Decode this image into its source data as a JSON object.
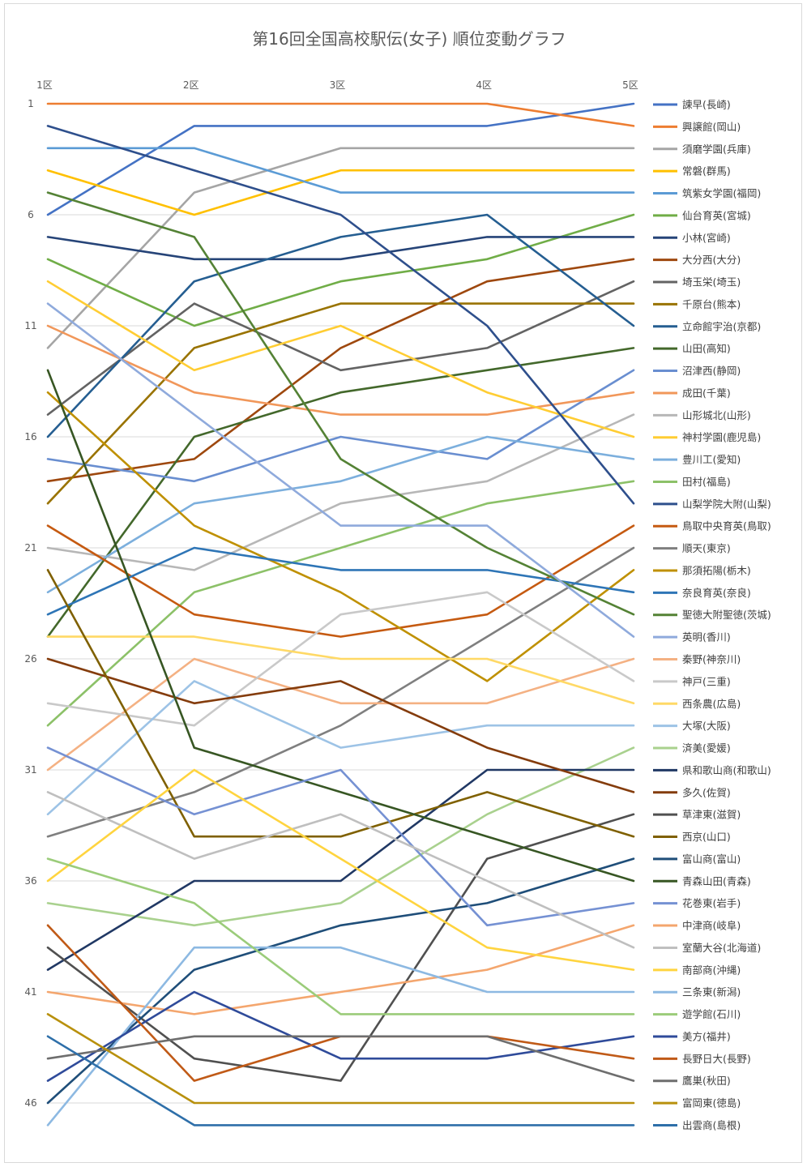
{
  "chart_data": {
    "type": "line",
    "title": "第16回全国高校駅伝(女子) 順位変動グラフ",
    "categories": [
      "1区",
      "2区",
      "3区",
      "4区",
      "5区"
    ],
    "y_ticks": [
      "1",
      "6",
      "11",
      "16",
      "21",
      "26",
      "31",
      "36",
      "41",
      "46"
    ],
    "ylim": [
      1,
      47
    ],
    "y_reversed": true,
    "grid": true,
    "legend_position": "right",
    "series": [
      {
        "name": "諫早(長崎)",
        "color": "#4472C4",
        "values": [
          6,
          2,
          2,
          2,
          1
        ]
      },
      {
        "name": "興譲館(岡山)",
        "color": "#ED7D31",
        "values": [
          1,
          1,
          1,
          1,
          2
        ]
      },
      {
        "name": "須磨学園(兵庫)",
        "color": "#A5A5A5",
        "values": [
          12,
          5,
          3,
          3,
          3
        ]
      },
      {
        "name": "常磐(群馬)",
        "color": "#FFC000",
        "values": [
          4,
          6,
          4,
          4,
          4
        ]
      },
      {
        "name": "筑紫女学園(福岡)",
        "color": "#5B9BD5",
        "values": [
          3,
          3,
          5,
          5,
          5
        ]
      },
      {
        "name": "仙台育英(宮城)",
        "color": "#70AD47",
        "values": [
          8,
          11,
          9,
          8,
          6
        ]
      },
      {
        "name": "小林(宮崎)",
        "color": "#264478",
        "values": [
          7,
          8,
          8,
          7,
          7
        ]
      },
      {
        "name": "大分西(大分)",
        "color": "#9E480E",
        "values": [
          18,
          17,
          12,
          9,
          8
        ]
      },
      {
        "name": "埼玉栄(埼玉)",
        "color": "#636363",
        "values": [
          15,
          10,
          13,
          12,
          9
        ]
      },
      {
        "name": "千原台(熊本)",
        "color": "#997300",
        "values": [
          19,
          12,
          10,
          10,
          10
        ]
      },
      {
        "name": "立命館宇治(京都)",
        "color": "#255E91",
        "values": [
          16,
          9,
          7,
          6,
          11
        ]
      },
      {
        "name": "山田(高知)",
        "color": "#43682B",
        "values": [
          25,
          16,
          14,
          13,
          12
        ]
      },
      {
        "name": "沼津西(静岡)",
        "color": "#698ED0",
        "values": [
          17,
          18,
          16,
          17,
          13
        ]
      },
      {
        "name": "成田(千葉)",
        "color": "#F1975A",
        "values": [
          11,
          14,
          15,
          15,
          14
        ]
      },
      {
        "name": "山形城北(山形)",
        "color": "#B7B7B7",
        "values": [
          21,
          22,
          19,
          18,
          15
        ]
      },
      {
        "name": "神村学園(鹿児島)",
        "color": "#FFCD33",
        "values": [
          9,
          13,
          11,
          14,
          16
        ]
      },
      {
        "name": "豊川工(愛知)",
        "color": "#7CAFDD",
        "values": [
          23,
          19,
          18,
          16,
          17
        ]
      },
      {
        "name": "田村(福島)",
        "color": "#8CC168",
        "values": [
          29,
          23,
          21,
          19,
          18
        ]
      },
      {
        "name": "山梨学院大附(山梨)",
        "color": "#2E4F8C",
        "values": [
          2,
          4,
          6,
          11,
          19
        ]
      },
      {
        "name": "鳥取中央育英(鳥取)",
        "color": "#C55A11",
        "values": [
          20,
          24,
          25,
          24,
          20
        ]
      },
      {
        "name": "順天(東京)",
        "color": "#7F7F7F",
        "values": [
          34,
          32,
          29,
          25,
          21
        ]
      },
      {
        "name": "那須拓陽(栃木)",
        "color": "#BF9000",
        "values": [
          14,
          20,
          23,
          27,
          22
        ]
      },
      {
        "name": "奈良育英(奈良)",
        "color": "#2E75B6",
        "values": [
          24,
          21,
          22,
          22,
          23
        ]
      },
      {
        "name": "聖徳大附聖徳(茨城)",
        "color": "#548235",
        "values": [
          5,
          7,
          17,
          21,
          24
        ]
      },
      {
        "name": "英明(香川)",
        "color": "#8FAADC",
        "values": [
          10,
          15,
          20,
          20,
          25
        ]
      },
      {
        "name": "秦野(神奈川)",
        "color": "#F4B183",
        "values": [
          31,
          26,
          28,
          28,
          26
        ]
      },
      {
        "name": "神戸(三重)",
        "color": "#C9C9C9",
        "values": [
          28,
          29,
          24,
          23,
          27
        ]
      },
      {
        "name": "西条農(広島)",
        "color": "#FFD966",
        "values": [
          25,
          25,
          26,
          26,
          28
        ]
      },
      {
        "name": "大塚(大阪)",
        "color": "#9DC3E6",
        "values": [
          33,
          27,
          30,
          29,
          29
        ]
      },
      {
        "name": "済美(愛媛)",
        "color": "#A9D18E",
        "values": [
          37,
          38,
          37,
          33,
          30
        ]
      },
      {
        "name": "県和歌山商(和歌山)",
        "color": "#203864",
        "values": [
          40,
          36,
          36,
          31,
          31
        ]
      },
      {
        "name": "多久(佐賀)",
        "color": "#843C0C",
        "values": [
          26,
          28,
          27,
          30,
          32
        ]
      },
      {
        "name": "草津東(滋賀)",
        "color": "#505050",
        "values": [
          39,
          44,
          45,
          35,
          33
        ]
      },
      {
        "name": "西京(山口)",
        "color": "#7F6000",
        "values": [
          22,
          34,
          34,
          32,
          34
        ]
      },
      {
        "name": "富山商(富山)",
        "color": "#1F4E79",
        "values": [
          46,
          40,
          38,
          37,
          35
        ]
      },
      {
        "name": "青森山田(青森)",
        "color": "#375623",
        "values": [
          13,
          30,
          32,
          34,
          36
        ]
      },
      {
        "name": "花巻東(岩手)",
        "color": "#7591D3",
        "values": [
          30,
          33,
          31,
          38,
          37
        ]
      },
      {
        "name": "中津商(岐阜)",
        "color": "#F4A66E",
        "values": [
          41,
          42,
          41,
          40,
          38
        ]
      },
      {
        "name": "室蘭大谷(北海道)",
        "color": "#BFBFBF",
        "values": [
          32,
          35,
          33,
          36,
          39
        ]
      },
      {
        "name": "南部商(沖縄)",
        "color": "#FFD43F",
        "values": [
          36,
          31,
          35,
          39,
          40
        ]
      },
      {
        "name": "三条東(新潟)",
        "color": "#8DB9E2",
        "values": [
          47,
          39,
          39,
          41,
          41
        ]
      },
      {
        "name": "遊学館(石川)",
        "color": "#9BCC7A",
        "values": [
          35,
          37,
          42,
          42,
          42
        ]
      },
      {
        "name": "美方(福井)",
        "color": "#2F4B9A",
        "values": [
          45,
          41,
          44,
          44,
          43
        ]
      },
      {
        "name": "長野日大(長野)",
        "color": "#C05A17",
        "values": [
          38,
          45,
          43,
          43,
          44
        ]
      },
      {
        "name": "鷹巣(秋田)",
        "color": "#6E6E6E",
        "values": [
          44,
          43,
          43,
          43,
          45
        ]
      },
      {
        "name": "富岡東(徳島)",
        "color": "#B8900D",
        "values": [
          42,
          46,
          46,
          46,
          46
        ]
      },
      {
        "name": "出雲商(島根)",
        "color": "#2E6FA9",
        "values": [
          43,
          47,
          47,
          47,
          47
        ]
      }
    ]
  }
}
